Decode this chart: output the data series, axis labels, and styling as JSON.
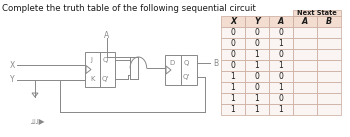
{
  "title": "Complete the truth table of the following sequential circuit",
  "table_headers": [
    "X",
    "Y",
    "A",
    "A",
    "B"
  ],
  "next_state_label": "Next State",
  "rows": [
    [
      "0",
      "0",
      "0",
      "",
      ""
    ],
    [
      "0",
      "0",
      "1",
      "",
      ""
    ],
    [
      "0",
      "1",
      "0",
      "",
      ""
    ],
    [
      "0",
      "1",
      "1",
      "",
      ""
    ],
    [
      "1",
      "0",
      "0",
      "",
      ""
    ],
    [
      "1",
      "0",
      "1",
      "",
      ""
    ],
    [
      "1",
      "1",
      "0",
      "",
      ""
    ],
    [
      "1",
      "1",
      "1",
      "",
      ""
    ]
  ],
  "bg_header": "#f2ddd0",
  "bg_body": "#faf5f2",
  "bg_ns_header": "#f2ddd0",
  "line_color": "#c8a898",
  "text_color": "#1a1a1a",
  "title_fontsize": 6.2,
  "cell_fontsize": 5.5,
  "header_fontsize": 5.8,
  "circuit_color": "#888888",
  "circuit_lw": 0.7
}
